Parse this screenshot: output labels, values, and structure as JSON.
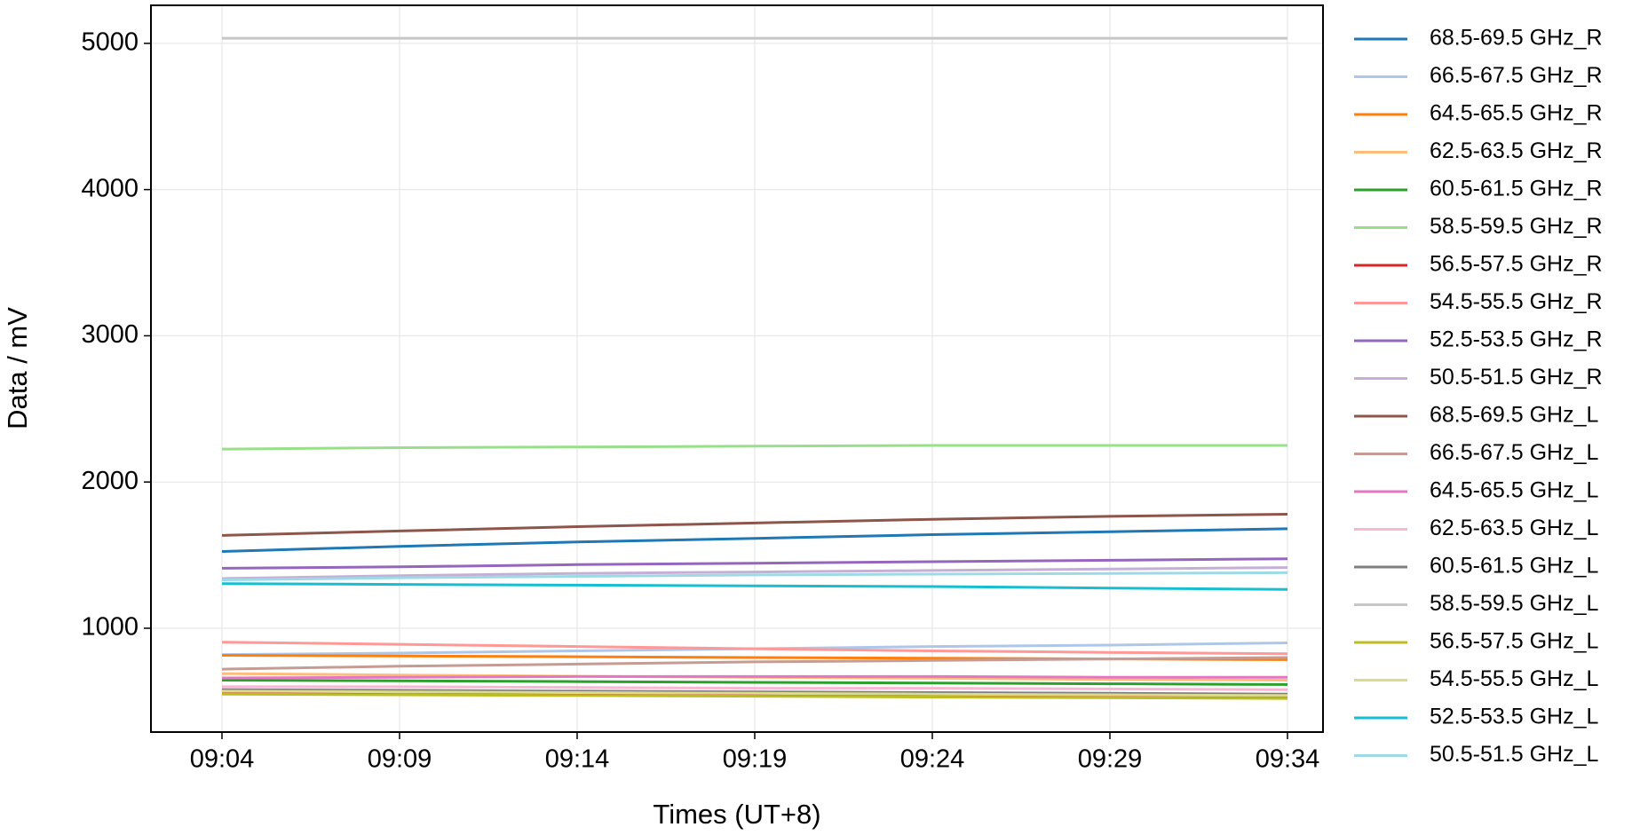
{
  "chart_data": {
    "type": "line",
    "x_label": "Times (UT+8)",
    "y_label": "Data / mV",
    "x": [
      "09:04",
      "09:09",
      "09:14",
      "09:19",
      "09:24",
      "09:29",
      "09:34"
    ],
    "xlim": [
      "09:02",
      "09:35"
    ],
    "xticks": [
      "09:04",
      "09:09",
      "09:14",
      "09:19",
      "09:24",
      "09:29",
      "09:34"
    ],
    "ylim": [
      290,
      5260
    ],
    "yticks": [
      1000,
      2000,
      3000,
      4000,
      5000
    ],
    "grid": true,
    "legend": "outside-right",
    "series": [
      {
        "name": "68.5-69.5 GHz_R",
        "color": "#1f77b4",
        "values": [
          1525,
          1560,
          1590,
          1615,
          1640,
          1660,
          1680
        ]
      },
      {
        "name": "66.5-67.5 GHz_R",
        "color": "#aec7e8",
        "values": [
          820,
          830,
          845,
          860,
          875,
          885,
          900
        ]
      },
      {
        "name": "64.5-65.5 GHz_R",
        "color": "#ff7f0e",
        "values": [
          815,
          810,
          805,
          800,
          795,
          790,
          785
        ]
      },
      {
        "name": "62.5-63.5 GHz_R",
        "color": "#ffbb78",
        "values": [
          690,
          680,
          672,
          665,
          658,
          650,
          645
        ]
      },
      {
        "name": "60.5-61.5 GHz_R",
        "color": "#2ca02c",
        "values": [
          645,
          640,
          635,
          630,
          625,
          620,
          615
        ]
      },
      {
        "name": "58.5-59.5 GHz_R",
        "color": "#98df8a",
        "values": [
          2225,
          2235,
          2240,
          2245,
          2250,
          2250,
          2250
        ]
      },
      {
        "name": "56.5-57.5 GHz_R",
        "color": "#d62728",
        "values": [
          560,
          555,
          550,
          545,
          540,
          535,
          530
        ]
      },
      {
        "name": "54.5-55.5 GHz_R",
        "color": "#ff9896",
        "values": [
          905,
          890,
          875,
          860,
          845,
          835,
          825
        ]
      },
      {
        "name": "52.5-53.5 GHz_R",
        "color": "#9467bd",
        "values": [
          1410,
          1420,
          1435,
          1445,
          1455,
          1465,
          1475
        ]
      },
      {
        "name": "50.5-51.5 GHz_R",
        "color": "#c5b0d5",
        "values": [
          1340,
          1360,
          1375,
          1385,
          1395,
          1405,
          1415
        ]
      },
      {
        "name": "68.5-69.5 GHz_L",
        "color": "#8c564b",
        "values": [
          1635,
          1665,
          1695,
          1720,
          1745,
          1765,
          1780
        ]
      },
      {
        "name": "66.5-67.5 GHz_L",
        "color": "#c49c94",
        "values": [
          720,
          740,
          755,
          770,
          780,
          790,
          800
        ]
      },
      {
        "name": "64.5-65.5 GHz_L",
        "color": "#e377c2",
        "values": [
          660,
          665,
          670,
          670,
          670,
          665,
          665
        ]
      },
      {
        "name": "62.5-63.5 GHz_L",
        "color": "#f7b6d2",
        "values": [
          600,
          600,
          595,
          590,
          590,
          585,
          580
        ]
      },
      {
        "name": "60.5-61.5 GHz_L",
        "color": "#7f7f7f",
        "values": [
          580,
          575,
          570,
          565,
          560,
          555,
          550
        ]
      },
      {
        "name": "58.5-59.5 GHz_L",
        "color": "#c7c7c7",
        "values": [
          5035,
          5035,
          5035,
          5035,
          5035,
          5035,
          5035
        ]
      },
      {
        "name": "56.5-57.5 GHz_L",
        "color": "#bcbd22",
        "values": [
          550,
          545,
          540,
          535,
          530,
          525,
          520
        ]
      },
      {
        "name": "54.5-55.5 GHz_L",
        "color": "#dbdb8d",
        "values": [
          570,
          565,
          560,
          555,
          550,
          545,
          540
        ]
      },
      {
        "name": "52.5-53.5 GHz_L",
        "color": "#17becf",
        "values": [
          1305,
          1300,
          1295,
          1290,
          1285,
          1275,
          1265
        ]
      },
      {
        "name": "50.5-51.5 GHz_L",
        "color": "#9edae5",
        "values": [
          1330,
          1345,
          1355,
          1365,
          1370,
          1375,
          1380
        ]
      }
    ]
  }
}
